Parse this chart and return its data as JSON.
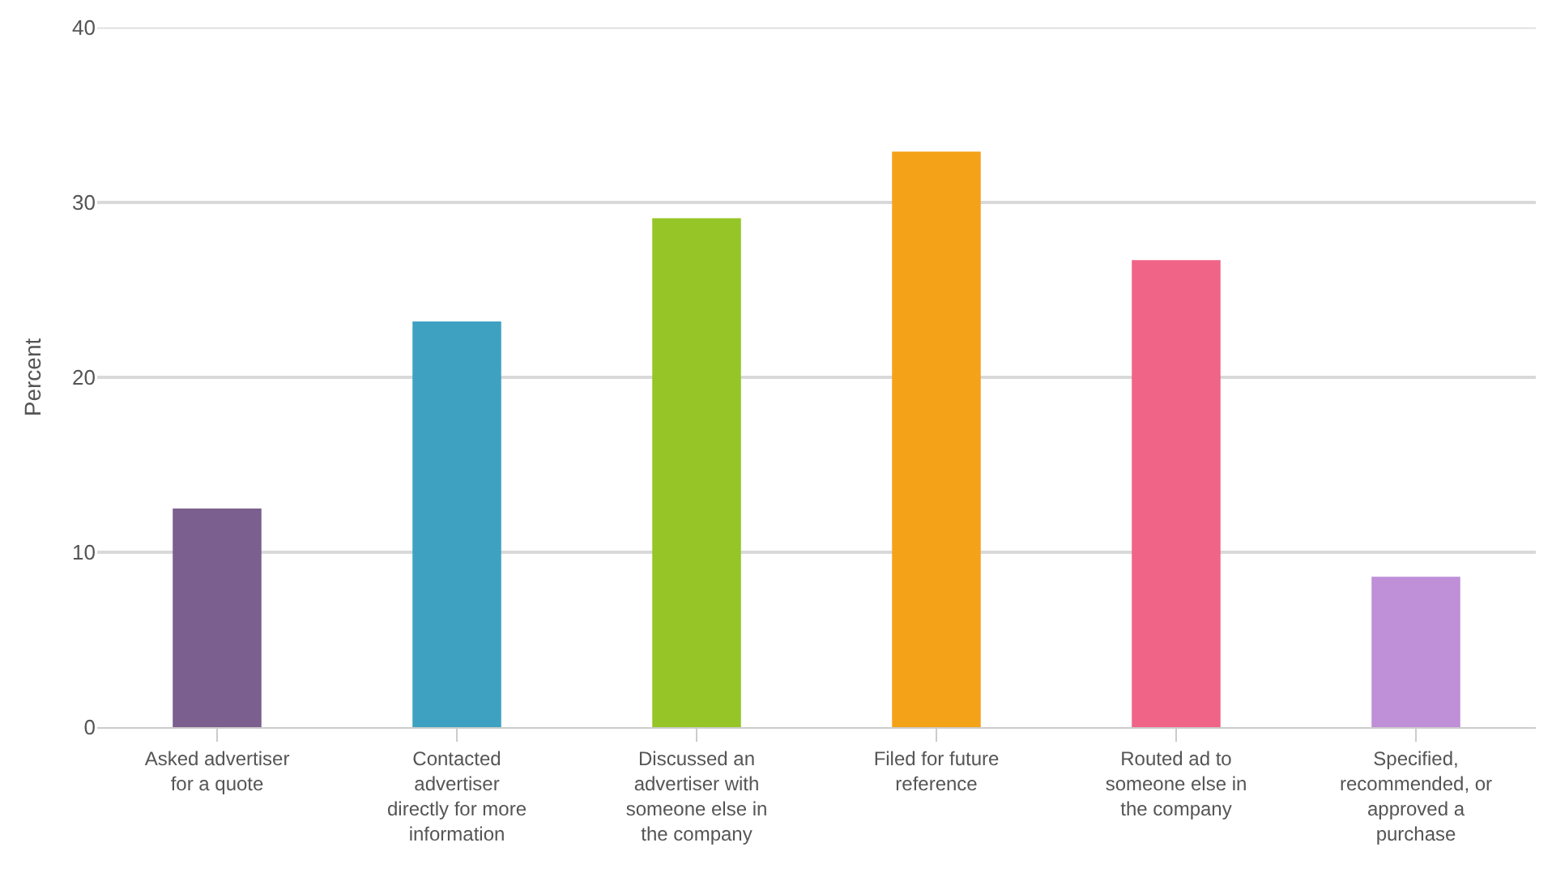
{
  "chart_data": {
    "type": "bar",
    "ylabel": "Percent",
    "categories": [
      "Asked advertiser for a quote",
      "Contacted advertiser directly for more information",
      "Discussed an advertiser with someone else in the company",
      "Filed for future reference",
      "Routed ad to someone else in the company",
      "Specified, recommended, or approved a purchase"
    ],
    "values": [
      12.5,
      23.2,
      29.1,
      32.9,
      26.7,
      8.6
    ],
    "colors": [
      "#7b5f8f",
      "#3ea1c1",
      "#95c526",
      "#f4a318",
      "#f06487",
      "#bf8fd8"
    ],
    "ylim": [
      0,
      40
    ],
    "yticks": [
      0,
      10,
      20,
      30,
      40
    ],
    "grid": "y"
  }
}
